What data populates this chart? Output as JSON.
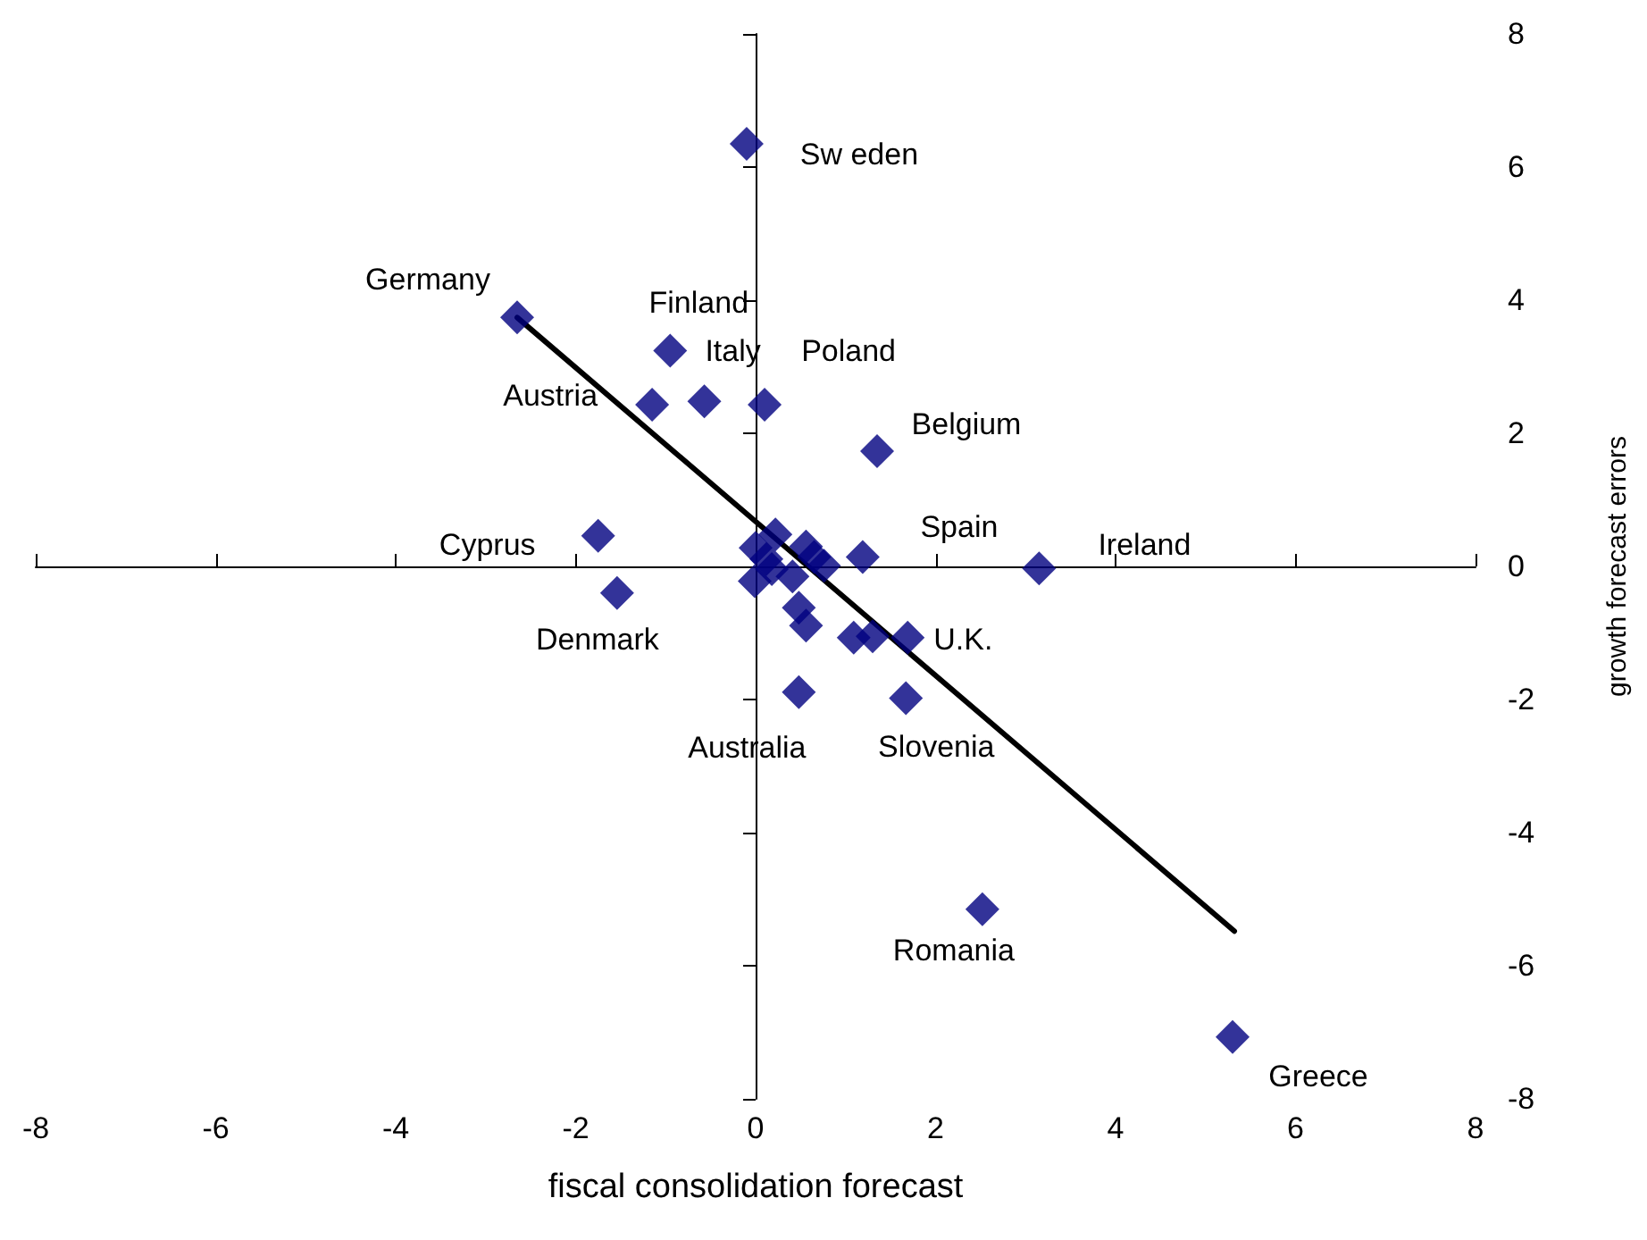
{
  "chart_data": {
    "type": "scatter",
    "xlabel": "fiscal consolidation forecast",
    "ylabel": "growth forecast errors",
    "xlim": [
      -8,
      8
    ],
    "xticks": [
      -8,
      -6,
      -4,
      -2,
      0,
      2,
      4,
      6,
      8
    ],
    "ylim": [
      -8,
      8
    ],
    "yticks": [
      -8,
      -6,
      -4,
      -2,
      0,
      2,
      4,
      6,
      8
    ],
    "marker": "diamond",
    "series": [
      {
        "color": "#000080",
        "x": [
          -0.1,
          -2.65,
          -0.95,
          -1.15,
          -0.57,
          0.1,
          1.35,
          -1.75,
          -1.54,
          1.19,
          3.15,
          1.69,
          1.67,
          0.48,
          2.52,
          5.3,
          1.09,
          1.3,
          0.48,
          0.56,
          0.0,
          0.22,
          0.56,
          0.76,
          -0.01,
          0.18,
          0.41,
          0.65,
          0.12
        ],
        "values": [
          6.35,
          3.74,
          3.24,
          2.43,
          2.48,
          2.43,
          1.73,
          0.46,
          -0.4,
          0.14,
          -0.03,
          -1.07,
          -1.98,
          -1.89,
          -5.15,
          -7.07,
          -1.07,
          -1.05,
          -0.62,
          -0.89,
          0.28,
          0.48,
          0.3,
          0.01,
          -0.22,
          -0.04,
          -0.15,
          0.14,
          0.11
        ]
      },
      {
        "type": "line",
        "color": "#000000",
        "marker": "none",
        "line_style": "solid",
        "x": [
          -2.65,
          5.32
        ],
        "values": [
          3.74,
          -5.48
        ]
      }
    ],
    "annotations": [
      {
        "text": "Sw eden",
        "x": -0.1,
        "y": 6.35
      },
      {
        "text": "Germany",
        "x": -2.65,
        "y": 3.74
      },
      {
        "text": "Finland",
        "x": -0.95,
        "y": 3.24
      },
      {
        "text": "Italy",
        "x": -0.57,
        "y": 2.48
      },
      {
        "text": "Poland",
        "x": 0.1,
        "y": 2.43
      },
      {
        "text": "Austria",
        "x": -1.15,
        "y": 2.43
      },
      {
        "text": "Belgium",
        "x": 1.35,
        "y": 1.73
      },
      {
        "text": "Spain",
        "x": 1.19,
        "y": 0.14
      },
      {
        "text": "Ireland",
        "x": 3.15,
        "y": -0.03
      },
      {
        "text": "Cyprus",
        "x": -1.75,
        "y": 0.46
      },
      {
        "text": "Denmark",
        "x": -1.54,
        "y": -0.4
      },
      {
        "text": "U.K.",
        "x": 1.69,
        "y": -1.07
      },
      {
        "text": "Australia",
        "x": 0.48,
        "y": -1.89
      },
      {
        "text": "Slovenia",
        "x": 1.67,
        "y": -1.98
      },
      {
        "text": "Romania",
        "x": 2.52,
        "y": -5.15
      },
      {
        "text": "Greece",
        "x": 5.3,
        "y": -7.07
      }
    ]
  }
}
